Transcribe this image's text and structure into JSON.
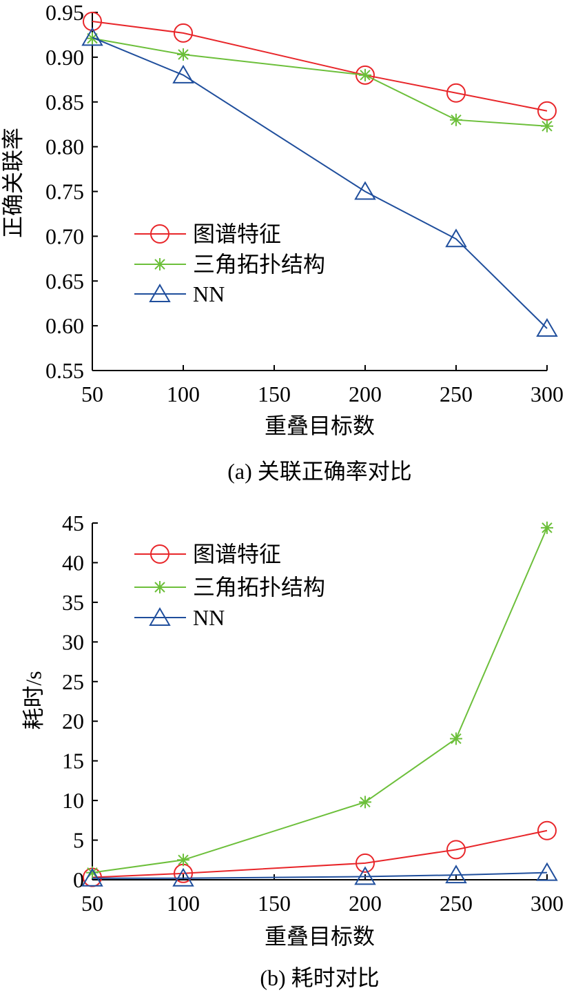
{
  "colors": {
    "red": "#e8262a",
    "green": "#6cbf3a",
    "blue": "#1f4e9c",
    "axis": "#000000"
  },
  "chart_data": [
    {
      "type": "line",
      "title": "",
      "caption": "(a) 关联正确率对比",
      "xlabel": "重叠目标数",
      "ylabel": "正确关联率",
      "x": [
        50,
        100,
        200,
        250,
        300
      ],
      "xlim": [
        50,
        300
      ],
      "ylim": [
        0.55,
        0.95
      ],
      "xticks": [
        50,
        100,
        150,
        200,
        250,
        300
      ],
      "xtick_labels": [
        "50",
        "100",
        "150",
        "200",
        "250",
        "300"
      ],
      "yticks": [
        0.55,
        0.6,
        0.65,
        0.7,
        0.75,
        0.8,
        0.85,
        0.9,
        0.95
      ],
      "ytick_labels": [
        "0.55",
        "0.60",
        "0.65",
        "0.70",
        "0.75",
        "0.80",
        "0.85",
        "0.90",
        "0.95"
      ],
      "legend_position": "center-left",
      "grid": false,
      "series": [
        {
          "name": "图谱特征",
          "color": "red",
          "marker": "circle",
          "values": [
            0.94,
            0.927,
            0.88,
            0.86,
            0.84
          ]
        },
        {
          "name": "三角拓扑结构",
          "color": "green",
          "marker": "asterisk",
          "values": [
            0.921,
            0.903,
            0.88,
            0.83,
            0.823
          ]
        },
        {
          "name": "NN",
          "color": "blue",
          "marker": "triangle",
          "values": [
            0.922,
            0.88,
            0.75,
            0.697,
            0.597
          ]
        }
      ]
    },
    {
      "type": "line",
      "title": "",
      "caption": "(b) 耗时对比",
      "xlabel": "重叠目标数",
      "ylabel": "耗时/s",
      "x": [
        50,
        100,
        200,
        250,
        300
      ],
      "xlim": [
        50,
        300
      ],
      "ylim": [
        0,
        45
      ],
      "xticks": [
        50,
        100,
        150,
        200,
        250,
        300
      ],
      "xtick_labels": [
        "50",
        "100",
        "150",
        "200",
        "250",
        "300"
      ],
      "yticks": [
        0,
        5,
        10,
        15,
        20,
        25,
        30,
        35,
        40,
        45
      ],
      "ytick_labels": [
        "0",
        "5",
        "10",
        "15",
        "20",
        "25",
        "30",
        "35",
        "40",
        "45"
      ],
      "legend_position": "top-left",
      "grid": false,
      "series": [
        {
          "name": "图谱特征",
          "color": "red",
          "marker": "circle",
          "values": [
            0.3,
            0.8,
            2.1,
            3.8,
            6.2
          ]
        },
        {
          "name": "三角拓扑结构",
          "color": "green",
          "marker": "asterisk",
          "values": [
            0.9,
            2.5,
            9.8,
            17.8,
            44.4
          ]
        },
        {
          "name": "NN",
          "color": "blue",
          "marker": "triangle",
          "values": [
            0.2,
            0.2,
            0.4,
            0.6,
            0.9
          ]
        }
      ]
    }
  ]
}
